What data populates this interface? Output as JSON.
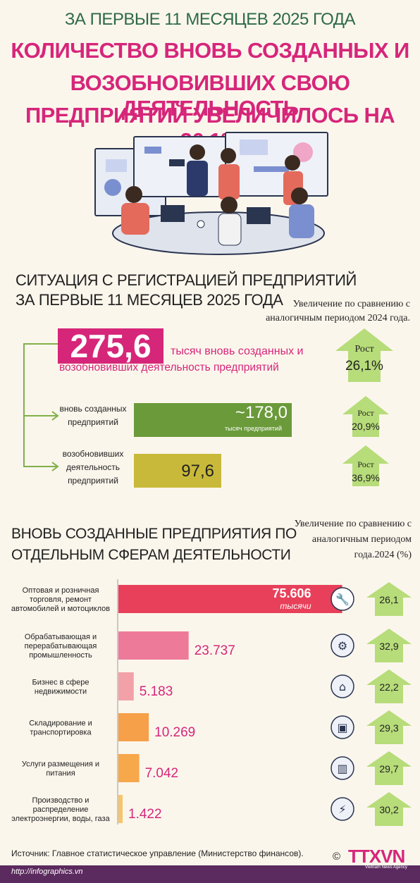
{
  "header": {
    "top_line": "ЗА ПЕРВЫЕ 11 МЕСЯЦЕВ 2025 ГОДА",
    "title_line1": "КОЛИЧЕСТВО ВНОВЬ СОЗДАННЫХ И",
    "title_line2": "ВОЗОБНОВИВШИХ СВОЮ ДЕЯТЕЛЬНОСТЬ",
    "title_line3": "ПРЕДПРИЯТИЙ УВЕЛИЧИЛОСЬ НА 26,1%"
  },
  "registration": {
    "title_line1": "СИТУАЦИЯ С РЕГИСТРАЦИЕЙ ПРЕДПРИЯТИЙ",
    "title_line2": "ЗА ПЕРВЫЕ 11 МЕСЯЦЕВ 2025 ГОДА",
    "note_line1": "Увеличение по сравнению с",
    "note_line2": "аналогичным периодом 2024 года.",
    "total_value": "275,6",
    "total_text_line1": "тысяч вновь созданных и",
    "total_text_line2": "возобновивших деятельность предприятий",
    "total_growth_label": "Рост",
    "total_growth_value": "26,1%",
    "new_label_line1": "вновь созданных",
    "new_label_line2": "предприятий",
    "new_value": "~178,0",
    "new_unit": "тысяч предприятий",
    "new_growth_label": "Рост",
    "new_growth_value": "20,9%",
    "resumed_label_line1": "возобновивших",
    "resumed_label_line2": "деятельность",
    "resumed_label_line3": "предприятий",
    "resumed_value": "97,6",
    "resumed_growth_label": "Рост",
    "resumed_growth_value": "36,9%"
  },
  "sectors": {
    "title_line1": "ВНОВЬ СОЗДАННЫЕ ПРЕДПРИЯТИЯ ПО",
    "title_line2": "ОТДЕЛЬНЫМ СФЕРАМ ДЕЯТЕЛЬНОСТИ",
    "note_line1": "Увеличение по сравнению с",
    "note_line2": "аналогичным периодом",
    "note_line3": "года.2024 (%)",
    "first_unit": "тысячи"
  },
  "chart_data": {
    "type": "bar",
    "orientation": "horizontal",
    "categories": [
      "Оптовая и розничная торговля, ремонт автомобилей и мотоциклов",
      "Обрабатывающая и перерабатывающая промышленность",
      "Бизнес в сфере недвижимости",
      "Складирование и транспортировка",
      "Услуги размещения и питания",
      "Производство и распределение электроэнергии, воды, газа"
    ],
    "category_lines": [
      [
        "Оптовая и розничная",
        "торговля, ремонт",
        "автомобилей и мотоциклов"
      ],
      [
        "Обрабатывающая и",
        "перерабатывающая",
        "промышленность"
      ],
      [
        "Бизнес в сфере",
        "недвижимости"
      ],
      [
        "Складирование и",
        "транспортировка"
      ],
      [
        "Услуги размещения и",
        "питания"
      ],
      [
        "Производство и",
        "распределение",
        "электроэнергии, воды, газа"
      ]
    ],
    "values": [
      75606,
      23737,
      5183,
      10269,
      7042,
      1422
    ],
    "value_labels": [
      "75.606",
      "23.737",
      "5.183",
      "10.269",
      "7.042",
      "1.422"
    ],
    "growth": [
      "26,1",
      "32,9",
      "22,2",
      "29,3",
      "29,7",
      "30,2"
    ],
    "icons": [
      "car-repair-icon",
      "factory-robot-icon",
      "house-in-hand-icon",
      "delivery-truck-icon",
      "hotel-building-icon",
      "energy-gear-icon"
    ],
    "colors": [
      "#e8405a",
      "#ee7a9a",
      "#f3a1a8",
      "#f6a04a",
      "#f7a84a",
      "#f6c46a"
    ],
    "xlim": [
      0,
      80000
    ]
  },
  "footer": {
    "source": "Источник: Главное статистическое управление (Министерство финансов).",
    "url": "http://infographics.vn",
    "logo": "TTXVN",
    "logo_sub": "Vietnam News Agency",
    "copyright": "©"
  },
  "colors": {
    "pink": "#d6267a",
    "green_dark": "#2d6a47",
    "green_bar": "#6a9a3a",
    "olive_bar": "#c9b93a",
    "arrow_green": "#a7d36b",
    "background": "#fbf6ec"
  }
}
